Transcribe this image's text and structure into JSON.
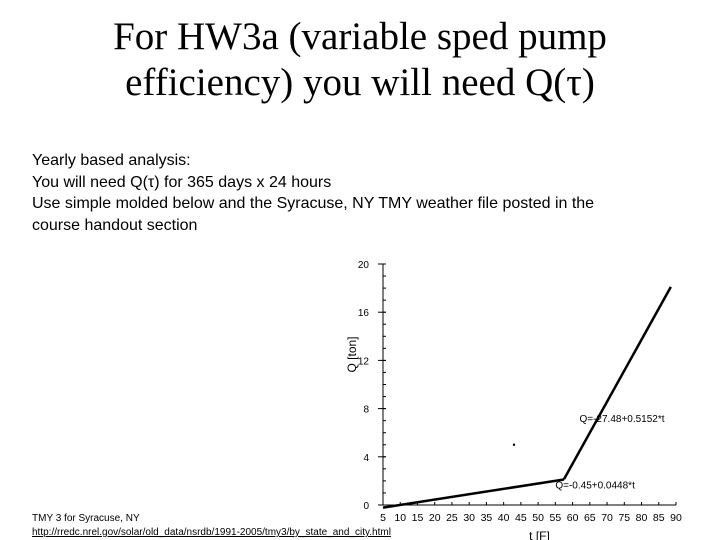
{
  "slide": {
    "title_lines": [
      "For HW3a (variable sped pump",
      "efficiency) you will need Q(τ)"
    ],
    "body_lines": [
      "Yearly based analysis:",
      "You will need Q(τ) for 365 days x 24 hours",
      "Use simple molded below and the Syracuse, NY TMY weather file posted in the",
      "course handout section"
    ],
    "footnote": {
      "text": "TMY 3 for Syracuse, NY",
      "link": "http://rredc.nrel.gov/solar/old_data/nsrdb/1991-2005/tmy3/by_state_and_city.html"
    }
  },
  "chart_data": {
    "type": "line",
    "title": "",
    "xlabel": "t [F]",
    "ylabel": "Q [ton]",
    "xlim": [
      5,
      90
    ],
    "ylim": [
      0,
      20
    ],
    "x_ticks": [
      5,
      10,
      15,
      20,
      25,
      30,
      35,
      40,
      45,
      50,
      55,
      60,
      65,
      70,
      75,
      80,
      85,
      90
    ],
    "y_ticks": [
      0,
      4,
      8,
      12,
      16,
      20
    ],
    "y_minor_step": 1,
    "grid": false,
    "series": [
      {
        "x": [
          5,
          57.5
        ],
        "y": [
          -0.22,
          2.12
        ]
      },
      {
        "x": [
          57.5,
          88.5
        ],
        "y": [
          2.14,
          18.1
        ]
      }
    ],
    "annotations": [
      {
        "text": "Q=-27.48+0.5152*t",
        "x": 62,
        "y": 6.9
      },
      {
        "text": "Q=-0.45+0.0448*t",
        "x": 55,
        "y": 1.35
      }
    ],
    "markers": [
      {
        "x": 43,
        "y": 5.0
      }
    ]
  }
}
